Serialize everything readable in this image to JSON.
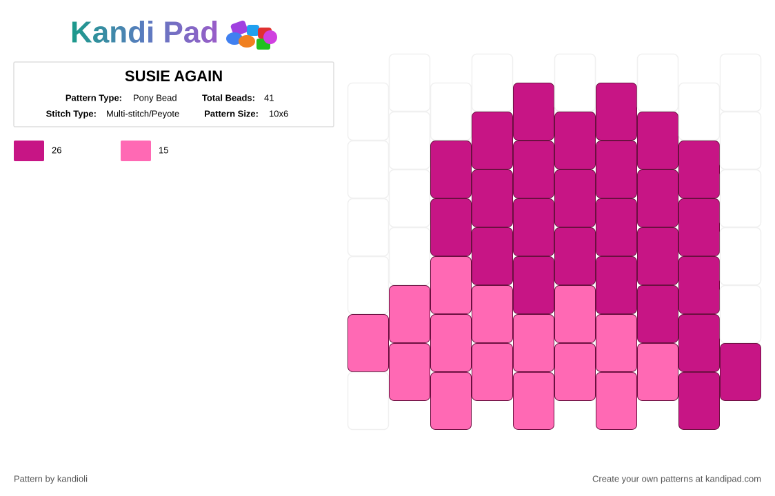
{
  "logo": "Kandi Pad",
  "pattern": {
    "title": "SUSIE AGAIN",
    "fields": [
      {
        "label": "Pattern Type:",
        "value": "Pony Bead"
      },
      {
        "label": "Total Beads:",
        "value": "41"
      },
      {
        "label": "Stitch Type:",
        "value": "Multi-stitch/Peyote"
      },
      {
        "label": "Pattern Size:",
        "value": "10x6"
      }
    ]
  },
  "legend": [
    {
      "color": "#c71585",
      "count": "26"
    },
    {
      "color": "#ff69b4",
      "count": "15"
    }
  ],
  "grid": {
    "empty_color": "#ffffff",
    "columns": [
      [
        "#ffffff",
        "#ffffff",
        "#ffffff",
        "#ffffff",
        "#ff69b4",
        "#ffffff"
      ],
      [
        "#ffffff",
        "#ffffff",
        "#ffffff",
        "#ffffff",
        "#ff69b4",
        "#ff69b4"
      ],
      [
        "#ffffff",
        "#c71585",
        "#c71585",
        "#ff69b4",
        "#ff69b4",
        "#ff69b4"
      ],
      [
        "#ffffff",
        "#c71585",
        "#c71585",
        "#c71585",
        "#ff69b4",
        "#ff69b4"
      ],
      [
        "#c71585",
        "#c71585",
        "#c71585",
        "#c71585",
        "#ff69b4",
        "#ff69b4"
      ],
      [
        "#ffffff",
        "#c71585",
        "#c71585",
        "#c71585",
        "#ff69b4",
        "#ff69b4"
      ],
      [
        "#c71585",
        "#c71585",
        "#c71585",
        "#c71585",
        "#ff69b4",
        "#ff69b4"
      ],
      [
        "#ffffff",
        "#c71585",
        "#c71585",
        "#c71585",
        "#c71585",
        "#ff69b4"
      ],
      [
        "#ffffff",
        "#c71585",
        "#c71585",
        "#c71585",
        "#c71585",
        "#c71585"
      ],
      [
        "#ffffff",
        "#ffffff",
        "#ffffff",
        "#ffffff",
        "#ffffff",
        "#c71585"
      ]
    ]
  },
  "footer": {
    "left": "Pattern by kandioli",
    "right": "Create your own patterns at kandipad.com"
  }
}
